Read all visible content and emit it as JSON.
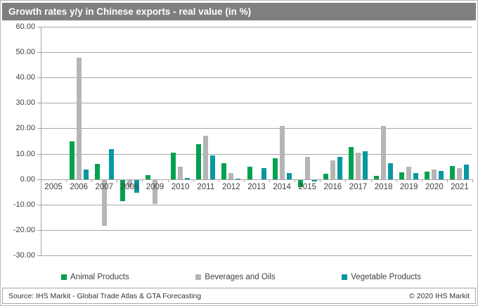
{
  "title": "Growth rates y/y in Chinese exports - real value (in %)",
  "footer": {
    "source": "Source: IHS Markit - Global Trade Atlas & GTA Forecasting",
    "copyright": "© 2020 IHS Markit"
  },
  "colors": {
    "title_bar": "#7f7f7f",
    "gridline": "#a6a6a6",
    "animal_products": "#00a14f",
    "beverages_and_oils": "#b5b5b5",
    "vegetable_products": "#0b97a1"
  },
  "chart_data": {
    "type": "bar",
    "title": "Growth rates y/y in Chinese exports - real value (in %)",
    "categories": [
      2005,
      2006,
      2007,
      2008,
      2009,
      2010,
      2011,
      2012,
      2013,
      2014,
      2015,
      2016,
      2017,
      2018,
      2019,
      2020,
      2021
    ],
    "series": [
      {
        "name": "Animal Products",
        "color": "#00a14f",
        "values": [
          0,
          14.8,
          6.0,
          -8.5,
          1.5,
          10.4,
          13.7,
          6.2,
          4.8,
          8.3,
          -3.0,
          2.0,
          12.7,
          1.2,
          2.8,
          3.0,
          5.1
        ]
      },
      {
        "name": "Beverages and Oils",
        "color": "#b5b5b5",
        "values": [
          0,
          47.9,
          -18.0,
          -3.0,
          -9.5,
          4.9,
          17.0,
          2.5,
          0,
          21.0,
          8.7,
          7.4,
          10.4,
          21.0,
          5.0,
          3.7,
          4.4
        ]
      },
      {
        "name": "Vegetable Products",
        "color": "#0b97a1",
        "values": [
          0,
          3.9,
          11.8,
          -5.0,
          0,
          0.5,
          9.3,
          0.3,
          4.4,
          2.5,
          -0.6,
          8.8,
          11.0,
          6.2,
          2.3,
          3.1,
          5.8
        ]
      }
    ],
    "ylim": [
      -30,
      60
    ],
    "ytick_step": 10,
    "ytick_format": "0.00",
    "grid": true,
    "legend_position": "bottom",
    "xlabel": "",
    "ylabel": ""
  }
}
